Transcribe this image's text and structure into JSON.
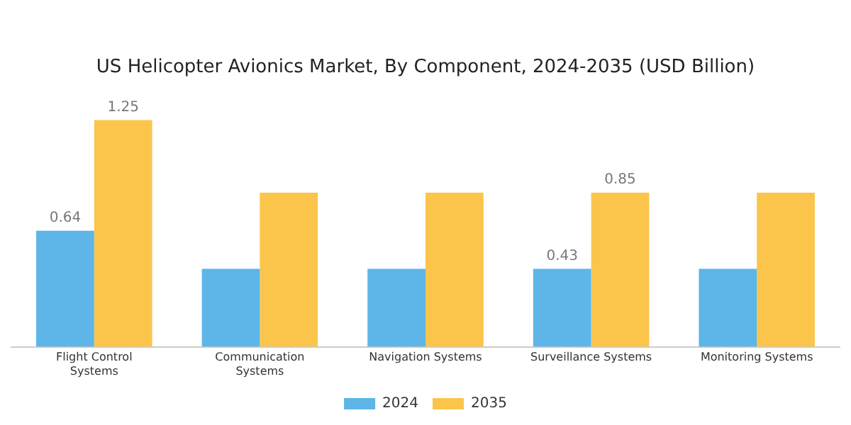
{
  "chart_data": {
    "type": "bar",
    "title": "US Helicopter Avionics Market, By Component, 2024-2035 (USD Billion)",
    "categories": [
      "Flight Control Systems",
      "Communication Systems",
      "Navigation Systems",
      "Surveillance Systems",
      "Monitoring Systems"
    ],
    "series": [
      {
        "name": "2024",
        "color": "#5db5e8",
        "values": [
          0.64,
          0.43,
          0.43,
          0.43,
          0.43
        ],
        "value_labels": [
          "0.64",
          null,
          null,
          "0.43",
          null
        ]
      },
      {
        "name": "2035",
        "color": "#fbc54b",
        "values": [
          1.25,
          0.85,
          0.85,
          0.85,
          0.85
        ],
        "value_labels": [
          "1.25",
          null,
          null,
          "0.85",
          null
        ]
      }
    ],
    "legend": "bottom",
    "grid": false
  }
}
